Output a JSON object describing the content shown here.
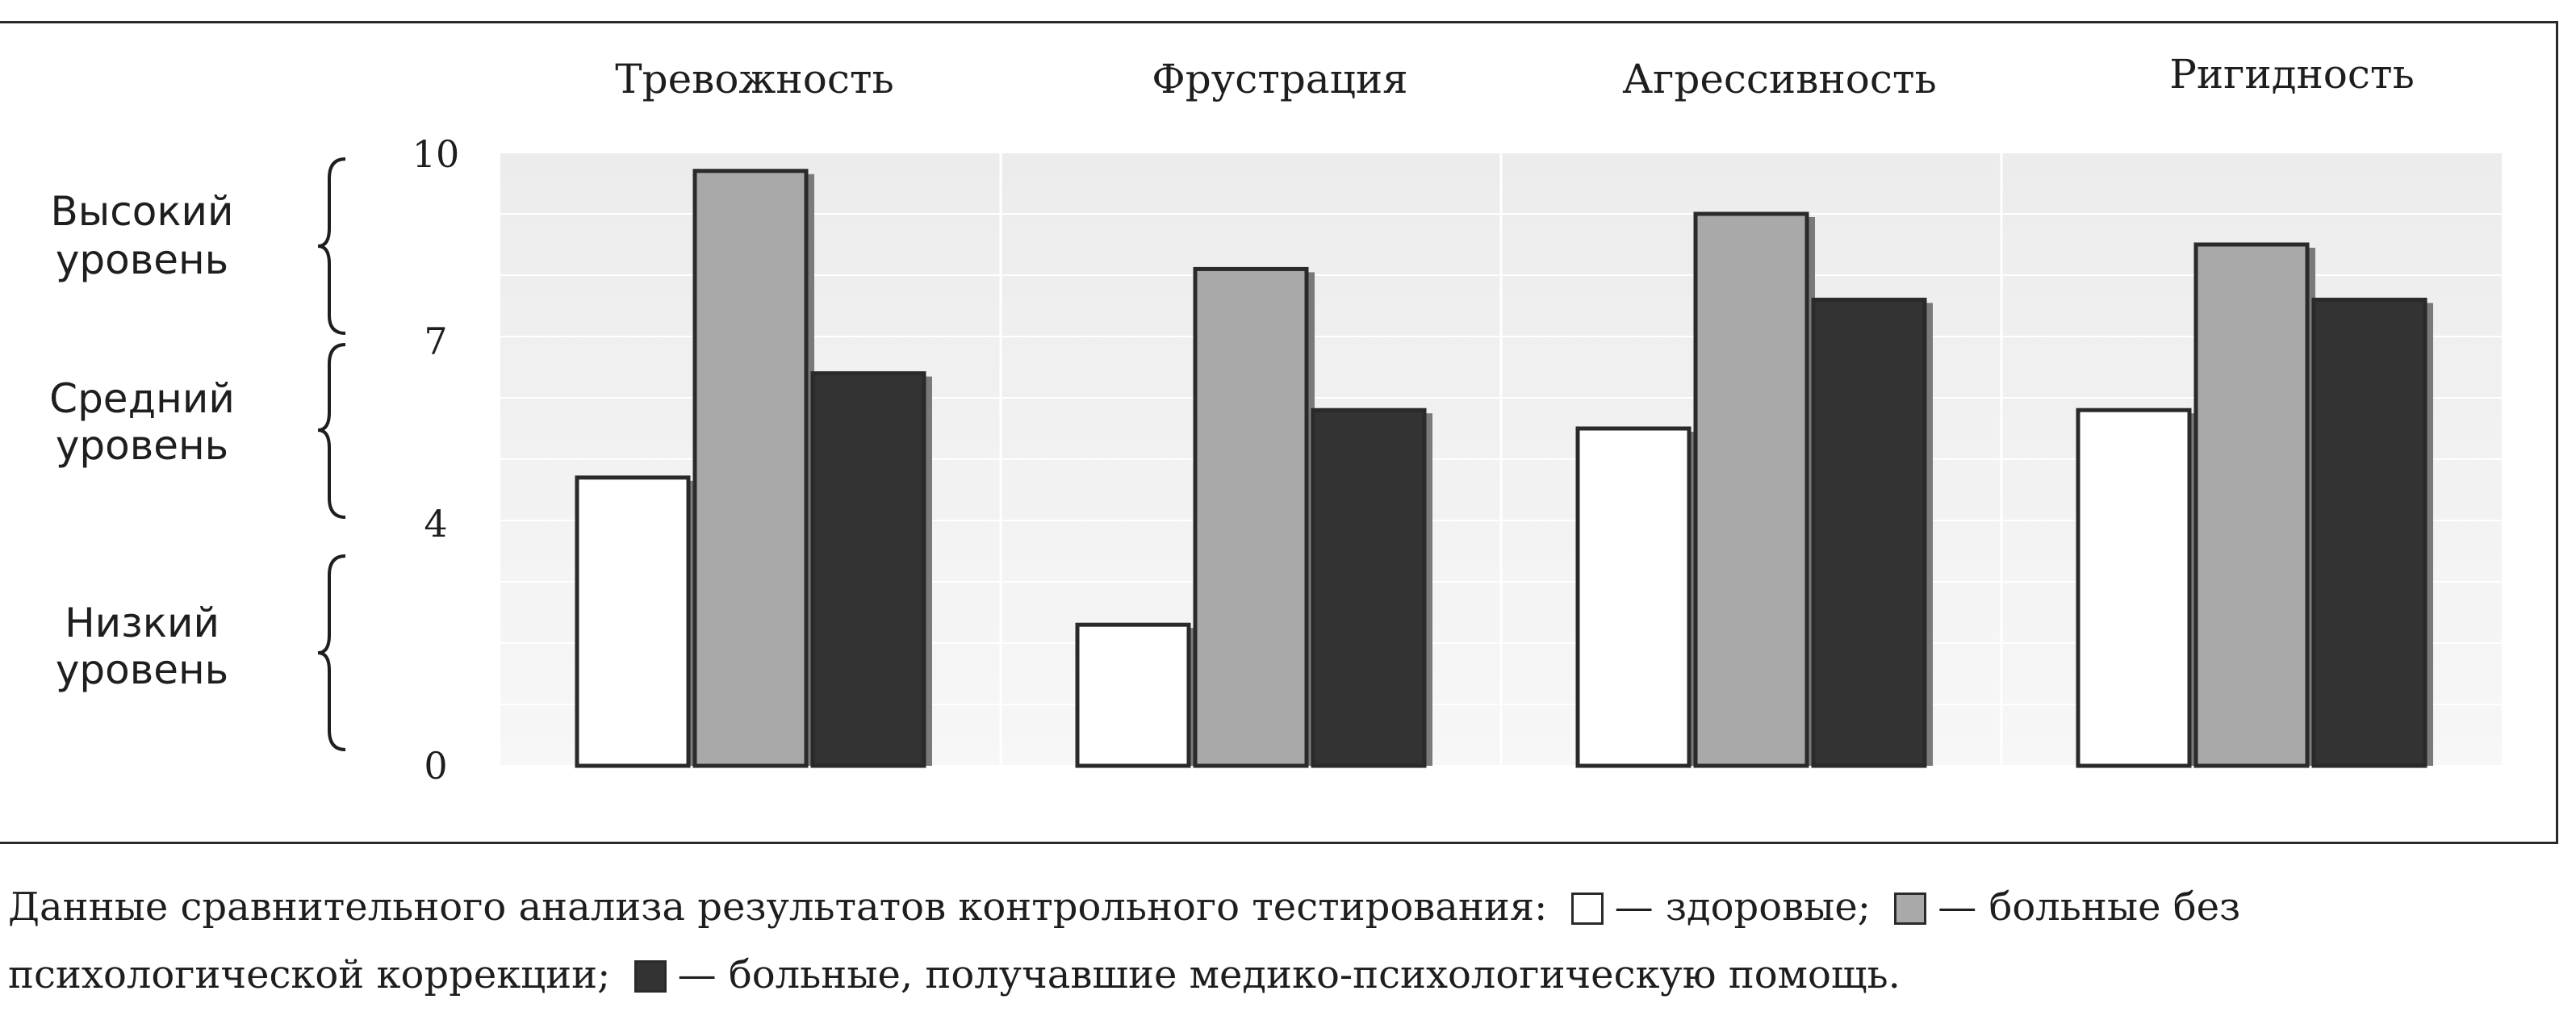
{
  "chart_data": {
    "type": "bar",
    "title": "",
    "xlabel": "",
    "ylabel": "",
    "categories": [
      "Тревожность",
      "Фрустрация",
      "Агрессивность",
      "Ригидность"
    ],
    "yticks": [
      "10",
      "7",
      "4",
      "0"
    ],
    "ylim": [
      0,
      10
    ],
    "grid": true,
    "legend": "caption-below",
    "levels": [
      {
        "line1": "Высокий",
        "line2": "уровень"
      },
      {
        "line1": "Средний",
        "line2": "уровень"
      },
      {
        "line1": "Низкий",
        "line2": "уровень"
      }
    ],
    "series": [
      {
        "key": "healthy",
        "color": "#ffffff",
        "values": [
          4.7,
          2.3,
          5.5,
          5.8
        ]
      },
      {
        "key": "no_correction",
        "color": "#a9a9a9",
        "values": [
          9.7,
          8.1,
          9.0,
          8.5
        ]
      },
      {
        "key": "medical_help",
        "color": "#333333",
        "values": [
          6.4,
          5.8,
          7.6,
          7.6
        ]
      }
    ]
  },
  "caption": {
    "text1": "Данные сравнительного анализа результатов контрольного тестирования:",
    "text2": "— здоровые;",
    "text3": "— больные без психологической коррекции;",
    "text4": "— больные, получавшие медико-психологическую помощь."
  }
}
